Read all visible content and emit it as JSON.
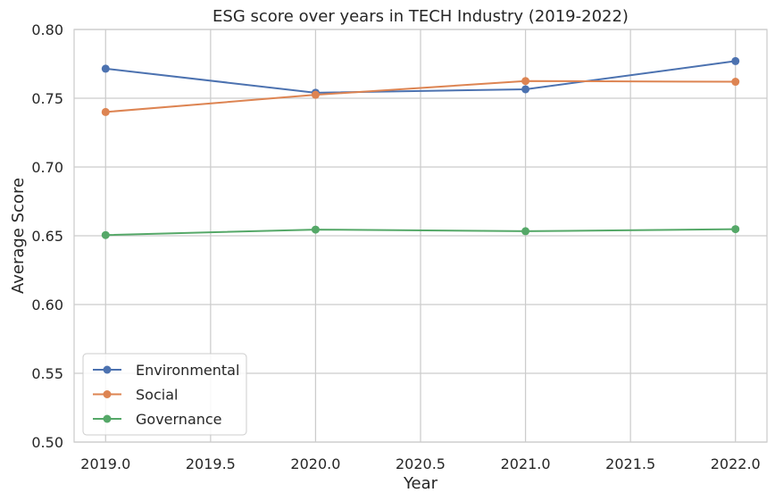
{
  "chart_data": {
    "type": "line",
    "title": "ESG score over years in TECH Industry (2019-2022)",
    "xlabel": "Year",
    "ylabel": "Average Score",
    "x": [
      2019,
      2020,
      2021,
      2022
    ],
    "xlim": [
      2018.85,
      2022.15
    ],
    "ylim": [
      0.5,
      0.8
    ],
    "xticks": [
      "2019.0",
      "2019.5",
      "2020.0",
      "2020.5",
      "2021.0",
      "2021.5",
      "2022.0"
    ],
    "xtick_values": [
      2019.0,
      2019.5,
      2020.0,
      2020.5,
      2021.0,
      2021.5,
      2022.0
    ],
    "yticks": [
      "0.50",
      "0.55",
      "0.60",
      "0.65",
      "0.70",
      "0.75",
      "0.80"
    ],
    "ytick_values": [
      0.5,
      0.55,
      0.6,
      0.65,
      0.7,
      0.75,
      0.8
    ],
    "grid": true,
    "legend_position": "lower-left",
    "series": [
      {
        "name": "Environmental",
        "color": "#4c72b0",
        "values": [
          0.7715,
          0.754,
          0.7565,
          0.777
        ]
      },
      {
        "name": "Social",
        "color": "#dd8452",
        "values": [
          0.74,
          0.7525,
          0.7625,
          0.762
        ]
      },
      {
        "name": "Governance",
        "color": "#55a868",
        "values": [
          0.6505,
          0.6545,
          0.6533,
          0.6548
        ]
      }
    ]
  }
}
